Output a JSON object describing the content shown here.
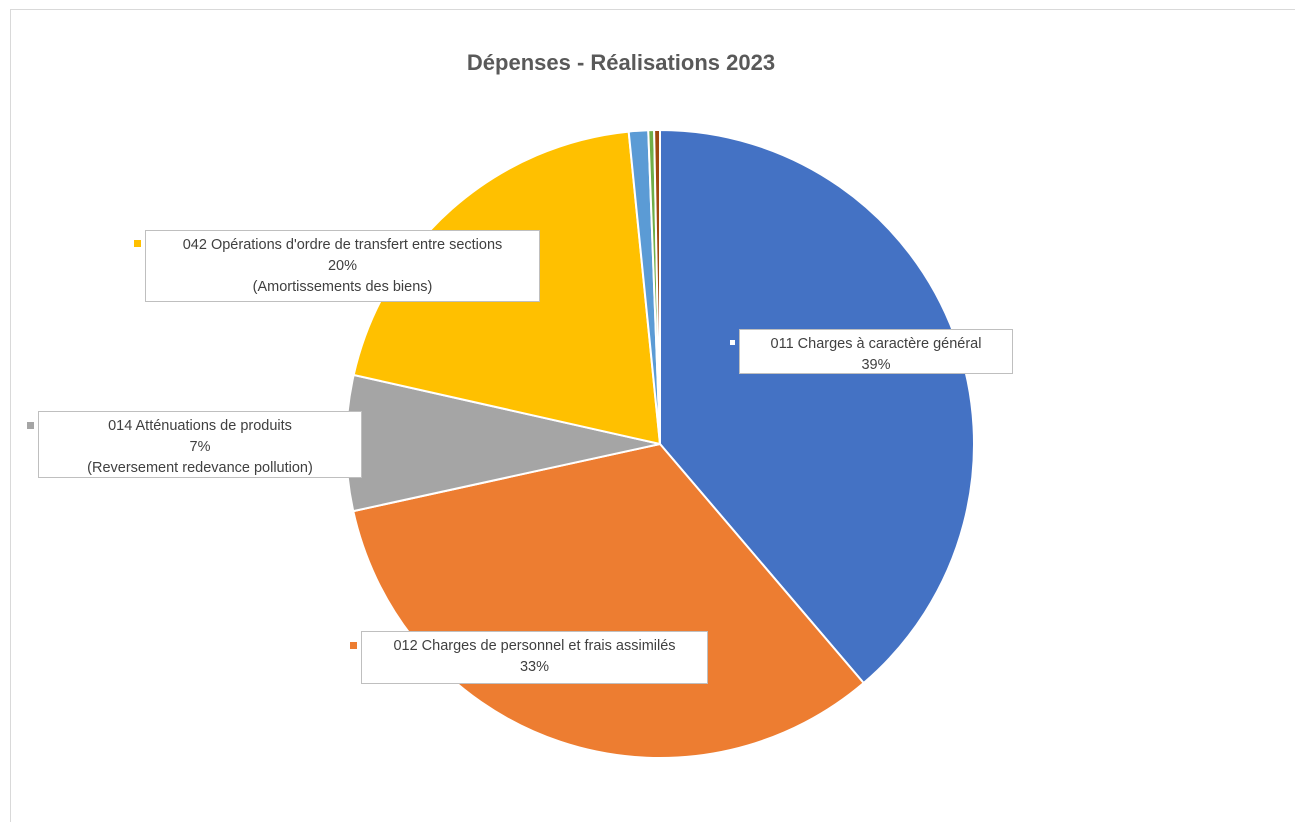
{
  "chart_data": {
    "type": "pie",
    "title": "Dépenses - Réalisations 2023",
    "slices": [
      {
        "label": "011 Charges à caractère général",
        "pct_label": "39%",
        "value": 39,
        "note": "",
        "color": "#4472c4"
      },
      {
        "label": "012 Charges de personnel et frais assimilés",
        "pct_label": "33%",
        "value": 33,
        "note": "",
        "color": "#ed7d31"
      },
      {
        "label": "014 Atténuations de produits",
        "pct_label": "7%",
        "value": 7,
        "note": "(Reversement redevance pollution)",
        "color": "#a5a5a5"
      },
      {
        "label": "042 Opérations d'ordre de transfert entre sections",
        "pct_label": "20%",
        "value": 20,
        "note": "(Amortissements des biens)",
        "color": "#ffc000"
      },
      {
        "label": "",
        "pct_label": "",
        "value": 1,
        "note": "",
        "color": "#5b9bd5"
      },
      {
        "label": "",
        "pct_label": "",
        "value": 0.3,
        "note": "",
        "color": "#70ad47"
      },
      {
        "label": "",
        "pct_label": "",
        "value": 0.3,
        "note": "",
        "color": "#9e480e"
      }
    ]
  }
}
